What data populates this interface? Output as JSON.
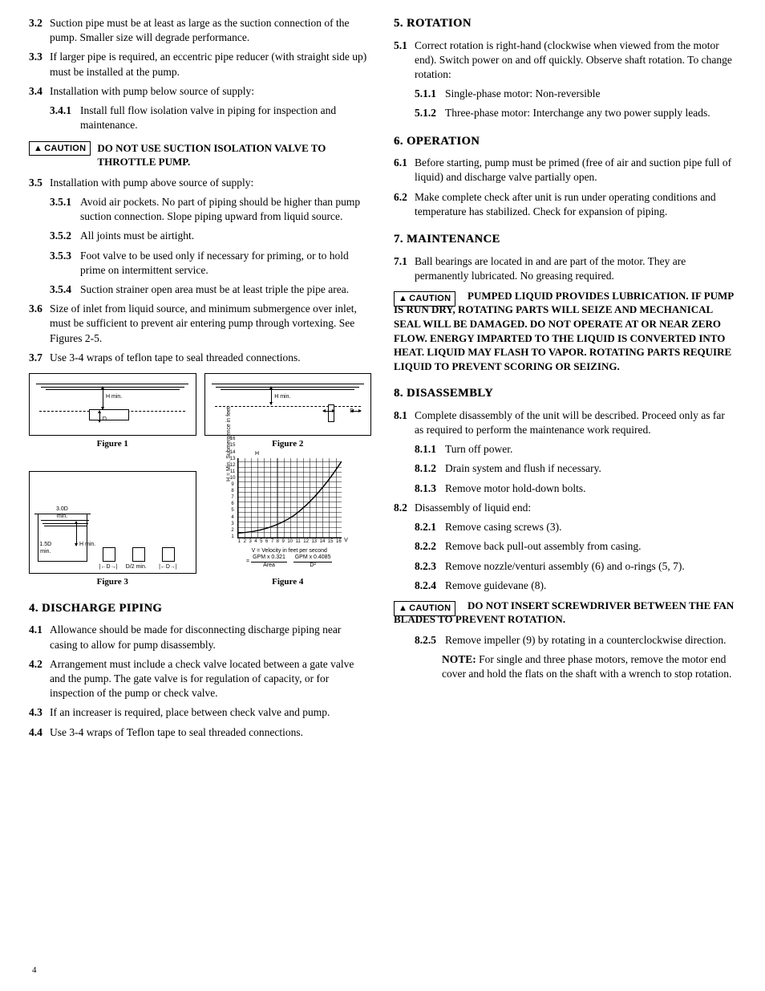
{
  "page_number": "4",
  "caution_label": "CAUTION",
  "left": {
    "i3_2": {
      "n": "3.2",
      "t": "Suction pipe must be at least as large as the suction connection of the pump. Smaller size will degrade performance."
    },
    "i3_3": {
      "n": "3.3",
      "t": "If larger pipe is required, an eccentric pipe reducer (with straight side up) must be installed at the pump."
    },
    "i3_4": {
      "n": "3.4",
      "t": "Installation with pump below source of supply:"
    },
    "i3_4_1": {
      "n": "3.4.1",
      "t": "Install full flow isolation valve in piping for inspection and maintenance."
    },
    "caution1": "DO NOT USE SUCTION ISOLATION VALVE TO THROTTLE PUMP.",
    "i3_5": {
      "n": "3.5",
      "t": "Installation with pump above source of supply:"
    },
    "i3_5_1": {
      "n": "3.5.1",
      "t": "Avoid air pockets. No part of piping should be higher than pump suction connection. Slope piping upward from liquid source."
    },
    "i3_5_2": {
      "n": "3.5.2",
      "t": "All joints must be airtight."
    },
    "i3_5_3": {
      "n": "3.5.3",
      "t": "Foot valve to be used only if necessary for priming, or to hold prime on intermittent service."
    },
    "i3_5_4": {
      "n": "3.5.4",
      "t": "Suction strainer open area must be at least triple the pipe area."
    },
    "i3_6": {
      "n": "3.6",
      "t": "Size of inlet from liquid source, and minimum submergence over inlet, must be sufficient to prevent air entering pump through vortexing. See Figures 2-5."
    },
    "i3_7": {
      "n": "3.7",
      "t": "Use 3-4 wraps of teflon tape to seal threaded connections."
    },
    "fig1_cap": "Figure 1",
    "fig2_cap": "Figure 2",
    "fig3_cap": "Figure 3",
    "fig4_cap": "Figure 4",
    "lbl_hmin": "H min.",
    "lbl_d": "D",
    "lbl_30d": "3.0D\nmin.",
    "lbl_15d": "1.5D\nmin.",
    "lbl_d2": "D/2 min.",
    "fig4": {
      "ylabel": "H = Min. Submergence in feet",
      "h": "H",
      "v": "V",
      "xticks": [
        "1",
        "2",
        "3",
        "4",
        "5",
        "6",
        "7",
        "8",
        "9",
        "10",
        "11",
        "12",
        "13",
        "14",
        "15",
        "16"
      ],
      "yticks": [
        "1",
        "2",
        "3",
        "4",
        "5",
        "6",
        "7",
        "8",
        "9",
        "10",
        "11",
        "12",
        "13",
        "14",
        "15",
        "16"
      ],
      "below1": "V = Velocity in feet per second",
      "below2a": "GPM x 0.321",
      "below2b": "Area",
      "below3a": "GPM x 0.4085",
      "below3b": "D²",
      "eq": "="
    },
    "sec4": "4. DISCHARGE PIPING",
    "i4_1": {
      "n": "4.1",
      "t": "Allowance should be made for disconnecting discharge piping near casing to allow for pump disassembly."
    },
    "i4_2": {
      "n": "4.2",
      "t": "Arrangement must include a check valve located between a gate valve and the pump. The gate valve is for regulation of capacity, or for inspection of the pump or check valve."
    },
    "i4_3": {
      "n": "4.3",
      "t": "If an increaser is required, place between check valve and pump."
    },
    "i4_4": {
      "n": "4.4",
      "t": "Use 3-4 wraps of Teflon tape to seal threaded connections."
    }
  },
  "right": {
    "sec5": "5. ROTATION",
    "i5_1": {
      "n": "5.1",
      "t": "Correct rotation is right-hand (clockwise when viewed from the motor end). Switch power on and off quickly. Observe shaft rotation. To change rotation:"
    },
    "i5_1_1": {
      "n": "5.1.1",
      "t": "Single-phase motor: Non-reversible"
    },
    "i5_1_2": {
      "n": "5.1.2",
      "t": "Three-phase motor: Interchange any two power supply leads."
    },
    "sec6": "6. OPERATION",
    "i6_1": {
      "n": "6.1",
      "t": "Before starting, pump must be primed (free of air and suction pipe full of liquid) and discharge valve partially open."
    },
    "i6_2": {
      "n": "6.2",
      "t": "Make complete check after unit is run under operating conditions and temperature has stabilized. Check for expansion of piping."
    },
    "sec7": "7. MAINTENANCE",
    "i7_1": {
      "n": "7.1",
      "t": "Ball bearings are located in and are part of the motor. They are permanently lubricated. No greasing required."
    },
    "caution2": "PUMPED LIQUID PROVIDES LUBRICATION. IF PUMP IS RUN DRY, ROTATING PARTS WILL SEIZE AND MECHANICAL SEAL WILL BE DAMAGED. DO NOT OPERATE AT OR NEAR ZERO FLOW. ENERGY IMPARTED TO THE LIQUID IS CONVERTED INTO HEAT. LIQUID MAY FLASH TO VAPOR. ROTATING PARTS REQUIRE LIQUID TO PREVENT SCORING OR SEIZING.",
    "sec8": "8. DISASSEMBLY",
    "i8_1": {
      "n": "8.1",
      "t": "Complete disassembly of the unit will be described. Proceed only as far as required to perform the maintenance work required."
    },
    "i8_1_1": {
      "n": "8.1.1",
      "t": "Turn off power."
    },
    "i8_1_2": {
      "n": "8.1.2",
      "t": "Drain system and flush if necessary."
    },
    "i8_1_3": {
      "n": "8.1.3",
      "t": "Remove motor hold-down bolts."
    },
    "i8_2": {
      "n": "8.2",
      "t": "Disassembly of liquid end:"
    },
    "i8_2_1": {
      "n": "8.2.1",
      "t": "Remove casing screws (3)."
    },
    "i8_2_2": {
      "n": "8.2.2",
      "t": "Remove back pull-out assembly from casing."
    },
    "i8_2_3": {
      "n": "8.2.3",
      "t": "Remove nozzle/venturi assembly (6) and o-rings (5, 7)."
    },
    "i8_2_4": {
      "n": "8.2.4",
      "t": "Remove guidevane (8)."
    },
    "caution3": "DO NOT INSERT SCREWDRIVER BETWEEN THE FAN BLADES TO PREVENT ROTATION.",
    "i8_2_5": {
      "n": "8.2.5",
      "t": "Remove impeller (9) by rotating in a counterclockwise direction."
    },
    "note_lbl": "NOTE:",
    "note": "For single and three phase motors, remove the motor end cover and hold the flats on the shaft with a wrench to stop rotation."
  }
}
